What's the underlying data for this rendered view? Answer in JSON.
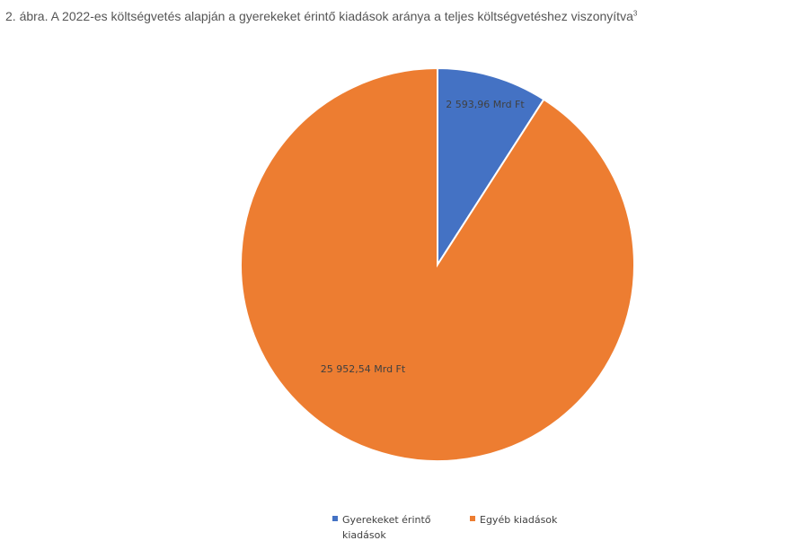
{
  "chart_data": {
    "type": "pie",
    "title": "2. ábra. A 2022-es költségvetés alapján a gyerekeket érintő kiadások aránya a teljes költségvetéshez viszonyítva",
    "title_note": "3",
    "categories": [
      "Gyerekeket érintő kiadások",
      "Egyéb kiadások"
    ],
    "values": [
      2593.96,
      25952.54
    ],
    "value_labels": [
      "2 593,96 Mrd Ft",
      "25 952,54 Mrd Ft"
    ],
    "colors": [
      "#4472c4",
      "#ed7d31"
    ],
    "legend": "bottom"
  }
}
